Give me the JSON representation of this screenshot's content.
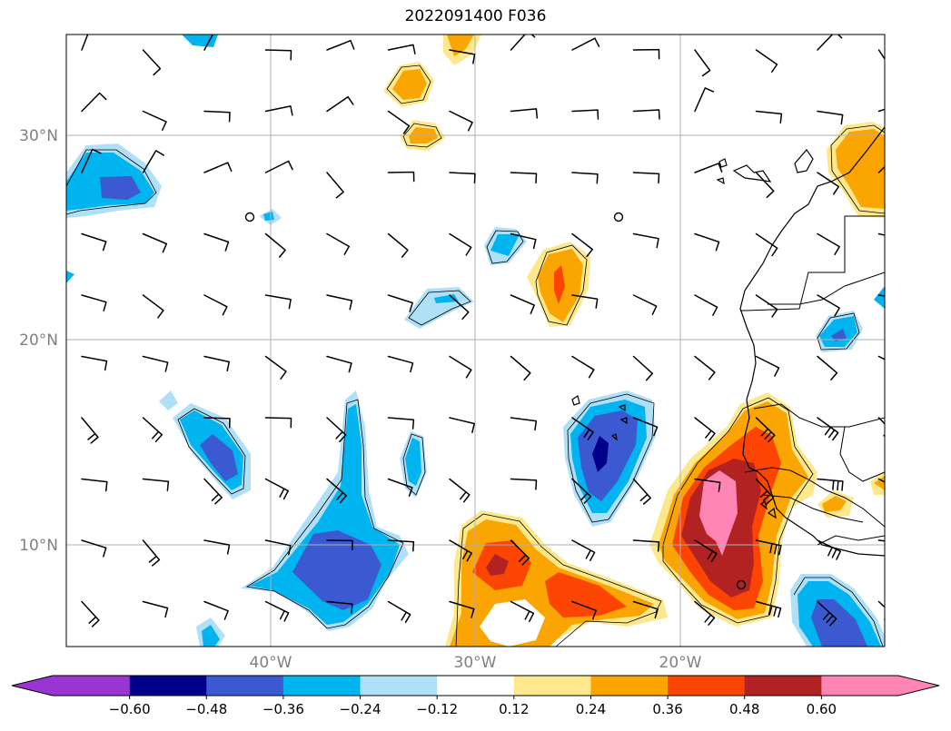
{
  "title": "2022091400 F036",
  "map": {
    "lat_labels": [
      "30°N",
      "20°N",
      "10°N"
    ],
    "lon_labels": [
      "40°W",
      "30°W",
      "20°W"
    ],
    "extent_deg": {
      "lon_min": -50,
      "lon_max": -10,
      "lat_min": 5,
      "lat_max": 35
    },
    "gridlines": true,
    "contour_field": "anomaly (shaded)",
    "overlays": [
      "wind-barbs",
      "coastlines",
      "country-borders"
    ]
  },
  "colorbar": {
    "extend": "both",
    "tick_labels": [
      "−0.60",
      "−0.48",
      "−0.36",
      "−0.24",
      "−0.12",
      "0.12",
      "0.24",
      "0.36",
      "0.48",
      "0.60"
    ],
    "levels": [
      -0.6,
      -0.48,
      -0.36,
      -0.24,
      -0.12,
      0.12,
      0.24,
      0.36,
      0.48,
      0.6
    ],
    "colors": [
      "#9a35d3",
      "#00008b",
      "#3b5ad1",
      "#00b4f0",
      "#b0e0f8",
      "#ffffff",
      "#fde98c",
      "#fba502",
      "#fc4503",
      "#b22222",
      "#ff86b4",
      "#ff86b4"
    ]
  }
}
